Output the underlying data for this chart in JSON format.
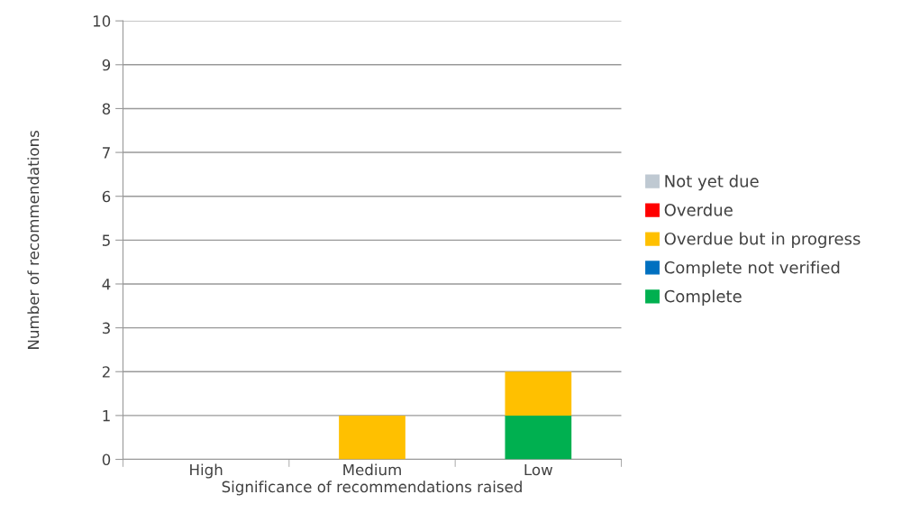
{
  "chart_data": {
    "type": "bar",
    "stacked": true,
    "xlabel": "Significance of recommendations raised",
    "ylabel": "Number of recommendations",
    "categories": [
      "High",
      "Medium",
      "Low"
    ],
    "series": [
      {
        "name": "Complete",
        "color": "#00b050",
        "values": [
          0,
          0,
          1
        ]
      },
      {
        "name": "Complete not verified",
        "color": "#0070c0",
        "values": [
          0,
          0,
          0
        ]
      },
      {
        "name": "Overdue but in progress",
        "color": "#ffc000",
        "values": [
          0,
          1,
          1
        ]
      },
      {
        "name": "Overdue",
        "color": "#ff0000",
        "values": [
          0,
          0,
          0
        ]
      },
      {
        "name": "Not yet due",
        "color": "#bfc9d2",
        "values": [
          0,
          0,
          0
        ]
      }
    ],
    "ylim": [
      0,
      10
    ],
    "yticks": [
      0,
      1,
      2,
      3,
      4,
      5,
      6,
      7,
      8,
      9,
      10
    ],
    "grid": "y",
    "legend": "right"
  }
}
